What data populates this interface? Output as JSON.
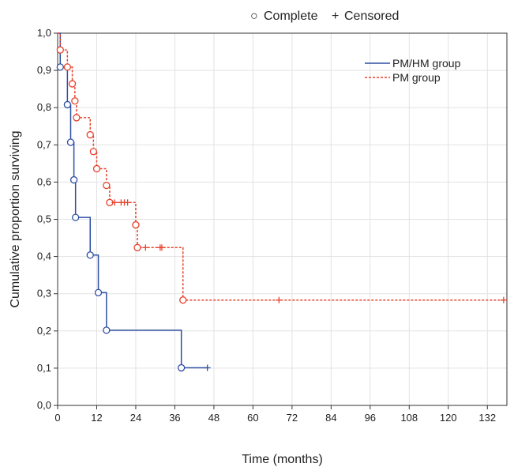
{
  "chart_data": {
    "type": "line",
    "subtype": "kaplan-meier",
    "title": "",
    "xlabel": "Time (months)",
    "ylabel": "Cumulative proportion surviving",
    "xlim": [
      0,
      138
    ],
    "ylim": [
      0,
      1.0
    ],
    "x_ticks": [
      0,
      12,
      24,
      36,
      48,
      60,
      72,
      84,
      96,
      108,
      120,
      132
    ],
    "y_ticks": [
      "0,0",
      "0,1",
      "0,2",
      "0,3",
      "0,4",
      "0,5",
      "0,6",
      "0,7",
      "0,8",
      "0,9",
      "1,0"
    ],
    "grid": true,
    "marker_legend": {
      "complete_symbol": "○",
      "complete_label": "Complete",
      "censored_symbol": "+",
      "censored_label": "Censored",
      "placement": "top-center"
    },
    "legend_placement": "top-right",
    "series": [
      {
        "name": "PM/HM group",
        "color": "#2e4fa3",
        "line_style": "solid",
        "steps": [
          [
            0,
            1.0
          ],
          [
            0.8,
            0.909
          ],
          [
            3,
            0.808
          ],
          [
            4,
            0.707
          ],
          [
            5,
            0.606
          ],
          [
            5.5,
            0.505
          ],
          [
            10,
            0.404
          ],
          [
            12.5,
            0.303
          ],
          [
            15,
            0.202
          ],
          [
            38,
            0.101
          ],
          [
            46,
            0.101
          ]
        ],
        "complete_points": [
          [
            0.8,
            0.909
          ],
          [
            3,
            0.808
          ],
          [
            4,
            0.707
          ],
          [
            5,
            0.606
          ],
          [
            5.5,
            0.505
          ],
          [
            10,
            0.404
          ],
          [
            12.5,
            0.303
          ],
          [
            15,
            0.202
          ],
          [
            38,
            0.101
          ]
        ],
        "censored_points": [
          [
            46,
            0.101
          ]
        ]
      },
      {
        "name": "PM group",
        "color": "#e8412c",
        "line_style": "dashed",
        "steps": [
          [
            0,
            1.0
          ],
          [
            0.8,
            0.955
          ],
          [
            3,
            0.909
          ],
          [
            4.5,
            0.864
          ],
          [
            5.3,
            0.818
          ],
          [
            5.8,
            0.773
          ],
          [
            10,
            0.727
          ],
          [
            11,
            0.682
          ],
          [
            12,
            0.636
          ],
          [
            15,
            0.591
          ],
          [
            16,
            0.545
          ],
          [
            24,
            0.485
          ],
          [
            24.5,
            0.424
          ],
          [
            38.5,
            0.283
          ],
          [
            137.5,
            0.283
          ]
        ],
        "complete_points": [
          [
            0.8,
            0.955
          ],
          [
            3,
            0.909
          ],
          [
            4.5,
            0.864
          ],
          [
            5.3,
            0.818
          ],
          [
            5.8,
            0.773
          ],
          [
            10,
            0.727
          ],
          [
            11,
            0.682
          ],
          [
            12,
            0.636
          ],
          [
            15,
            0.591
          ],
          [
            16,
            0.545
          ],
          [
            24,
            0.485
          ],
          [
            24.5,
            0.424
          ],
          [
            38.5,
            0.283
          ]
        ],
        "censored_points": [
          [
            17.5,
            0.545
          ],
          [
            19.5,
            0.545
          ],
          [
            20.5,
            0.545
          ],
          [
            21.5,
            0.545
          ],
          [
            27,
            0.424
          ],
          [
            31.5,
            0.424
          ],
          [
            32,
            0.424
          ],
          [
            68,
            0.283
          ],
          [
            137,
            0.283
          ]
        ]
      }
    ]
  }
}
